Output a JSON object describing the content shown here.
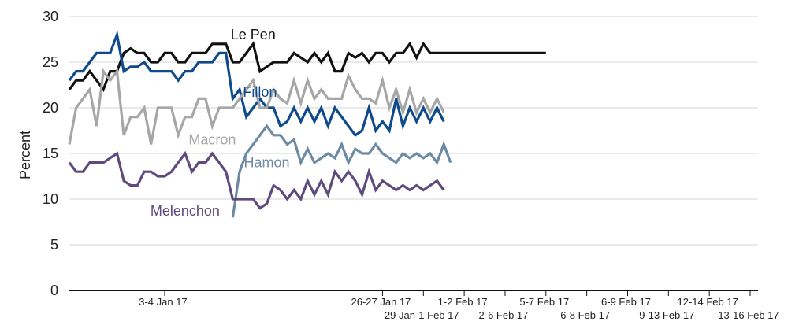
{
  "chart_data": {
    "type": "line",
    "title": "",
    "xlabel": "",
    "ylabel": "Percent",
    "ylim": [
      0,
      30
    ],
    "yticks": [
      0,
      5,
      10,
      15,
      20,
      25,
      30
    ],
    "grid": "horizontal",
    "x_tick_labels": [
      {
        "i": 14,
        "label": "3-4 Jan 17",
        "row": 1
      },
      {
        "i": 46,
        "label": "26-27 Jan 17",
        "row": 1
      },
      {
        "i": 52,
        "label": "29 Jan-1 Feb 17",
        "row": 2
      },
      {
        "i": 58,
        "label": "1-2 Feb 17",
        "row": 1
      },
      {
        "i": 64,
        "label": "2-6 Feb 17",
        "row": 2
      },
      {
        "i": 70,
        "label": "5-7 Feb 17",
        "row": 1
      },
      {
        "i": 76,
        "label": "6-8 Feb 17",
        "row": 2
      },
      {
        "i": 82,
        "label": "6-9 Feb 17",
        "row": 1
      },
      {
        "i": 88,
        "label": "9-13 Feb 17",
        "row": 2
      },
      {
        "i": 94,
        "label": "12-14 Feb 17",
        "row": 1
      },
      {
        "i": 100,
        "label": "13-16 Feb 17",
        "row": 2
      }
    ],
    "series": [
      {
        "name": "Le Pen",
        "color": "#111111",
        "label_pos": {
          "i": 27,
          "v": 27.5
        },
        "points": [
          [
            0,
            22
          ],
          [
            1,
            23
          ],
          [
            2,
            23
          ],
          [
            3,
            24
          ],
          [
            4,
            23
          ],
          [
            5,
            22
          ],
          [
            6,
            24
          ],
          [
            7,
            24
          ],
          [
            8,
            26
          ],
          [
            9,
            26.5
          ],
          [
            10,
            26
          ],
          [
            11,
            26
          ],
          [
            12,
            25
          ],
          [
            13,
            25
          ],
          [
            14,
            26
          ],
          [
            15,
            26
          ],
          [
            16,
            25
          ],
          [
            17,
            25
          ],
          [
            18,
            26
          ],
          [
            19,
            26
          ],
          [
            20,
            26
          ],
          [
            21,
            27
          ],
          [
            22,
            27
          ],
          [
            23,
            27
          ],
          [
            24,
            25
          ],
          [
            25,
            25
          ],
          [
            26,
            26
          ],
          [
            27,
            27
          ],
          [
            28,
            24
          ],
          [
            29,
            24.5
          ],
          [
            30,
            25
          ],
          [
            31,
            25
          ],
          [
            32,
            25
          ],
          [
            33,
            26
          ],
          [
            34,
            25.5
          ],
          [
            35,
            25
          ],
          [
            36,
            26
          ],
          [
            37,
            25
          ],
          [
            38,
            26
          ],
          [
            39,
            24
          ],
          [
            40,
            24
          ],
          [
            41,
            26
          ],
          [
            42,
            25.5
          ],
          [
            43,
            26
          ],
          [
            44,
            25
          ],
          [
            45,
            26
          ],
          [
            46,
            26
          ],
          [
            47,
            25
          ],
          [
            48,
            26
          ],
          [
            49,
            26
          ],
          [
            50,
            27
          ],
          [
            51,
            25.5
          ],
          [
            52,
            27
          ],
          [
            53,
            26
          ],
          [
            54,
            26
          ],
          [
            55,
            26
          ],
          [
            56,
            26
          ],
          [
            57,
            26
          ],
          [
            58,
            26
          ],
          [
            59,
            26
          ],
          [
            60,
            26
          ],
          [
            61,
            26
          ],
          [
            62,
            26
          ],
          [
            63,
            26
          ],
          [
            64,
            26
          ],
          [
            65,
            26
          ],
          [
            66,
            26
          ],
          [
            67,
            26
          ],
          [
            68,
            26
          ],
          [
            69,
            26
          ],
          [
            70,
            26
          ]
        ]
      },
      {
        "name": "Fillon",
        "color": "#0e4a8c",
        "label_pos": {
          "i": 28,
          "v": 21.2
        },
        "points": [
          [
            0,
            23
          ],
          [
            1,
            24
          ],
          [
            2,
            24
          ],
          [
            3,
            25
          ],
          [
            4,
            26
          ],
          [
            5,
            26
          ],
          [
            6,
            26
          ],
          [
            7,
            28
          ],
          [
            8,
            24
          ],
          [
            9,
            24.5
          ],
          [
            10,
            24.5
          ],
          [
            11,
            25
          ],
          [
            12,
            24
          ],
          [
            13,
            24
          ],
          [
            14,
            24
          ],
          [
            15,
            24
          ],
          [
            16,
            23
          ],
          [
            17,
            24
          ],
          [
            18,
            24
          ],
          [
            19,
            25
          ],
          [
            20,
            25
          ],
          [
            21,
            25
          ],
          [
            22,
            26
          ],
          [
            23,
            26
          ],
          [
            24,
            21
          ],
          [
            25,
            22
          ],
          [
            26,
            19
          ],
          [
            27,
            20
          ],
          [
            28,
            21
          ],
          [
            29,
            20
          ],
          [
            30,
            20
          ],
          [
            31,
            18
          ],
          [
            32,
            18.5
          ],
          [
            33,
            20
          ],
          [
            34,
            18.5
          ],
          [
            35,
            20
          ],
          [
            36,
            18.5
          ],
          [
            37,
            20
          ],
          [
            38,
            18
          ],
          [
            39,
            20
          ],
          [
            40,
            19
          ],
          [
            41,
            18
          ],
          [
            42,
            17
          ],
          [
            43,
            17.5
          ],
          [
            44,
            20
          ],
          [
            45,
            17.5
          ],
          [
            46,
            18.5
          ],
          [
            47,
            17.5
          ],
          [
            48,
            21
          ],
          [
            49,
            18
          ],
          [
            50,
            20
          ],
          [
            51,
            18.5
          ],
          [
            52,
            20
          ],
          [
            53,
            18.5
          ],
          [
            54,
            20
          ],
          [
            55,
            18.5
          ]
        ]
      },
      {
        "name": "Macron",
        "color": "#a6a6a6",
        "label_pos": {
          "i": 21,
          "v": 16
        },
        "points": [
          [
            0,
            16
          ],
          [
            1,
            20
          ],
          [
            2,
            21
          ],
          [
            3,
            22
          ],
          [
            4,
            18
          ],
          [
            5,
            24
          ],
          [
            6,
            23
          ],
          [
            7,
            24
          ],
          [
            8,
            17
          ],
          [
            9,
            19
          ],
          [
            10,
            19
          ],
          [
            11,
            20
          ],
          [
            12,
            16
          ],
          [
            13,
            20
          ],
          [
            14,
            20
          ],
          [
            15,
            20
          ],
          [
            16,
            17
          ],
          [
            17,
            19
          ],
          [
            18,
            19
          ],
          [
            19,
            21
          ],
          [
            20,
            21
          ],
          [
            21,
            18
          ],
          [
            22,
            20
          ],
          [
            23,
            20
          ],
          [
            24,
            20
          ],
          [
            25,
            21
          ],
          [
            26,
            22
          ],
          [
            27,
            23
          ],
          [
            28,
            20
          ],
          [
            29,
            20
          ],
          [
            30,
            22
          ],
          [
            31,
            21
          ],
          [
            32,
            20.5
          ],
          [
            33,
            23
          ],
          [
            34,
            20.5
          ],
          [
            35,
            23
          ],
          [
            36,
            21
          ],
          [
            37,
            22
          ],
          [
            38,
            21
          ],
          [
            39,
            21
          ],
          [
            40,
            21
          ],
          [
            41,
            23.5
          ],
          [
            42,
            22
          ],
          [
            43,
            21
          ],
          [
            44,
            21
          ],
          [
            45,
            20.5
          ],
          [
            46,
            23
          ],
          [
            47,
            20
          ],
          [
            48,
            22
          ],
          [
            49,
            19.5
          ],
          [
            50,
            22
          ],
          [
            51,
            19.5
          ],
          [
            52,
            21
          ],
          [
            53,
            19.5
          ],
          [
            54,
            21
          ],
          [
            55,
            19.5
          ]
        ]
      },
      {
        "name": "Hamon",
        "color": "#6d8aa3",
        "label_pos": {
          "i": 29,
          "v": 13.5
        },
        "points": [
          [
            24,
            8
          ],
          [
            25,
            13
          ],
          [
            26,
            15
          ],
          [
            27,
            16
          ],
          [
            28,
            17
          ],
          [
            29,
            18
          ],
          [
            30,
            17
          ],
          [
            31,
            17
          ],
          [
            32,
            16
          ],
          [
            33,
            16.5
          ],
          [
            34,
            14
          ],
          [
            35,
            15.5
          ],
          [
            36,
            14
          ],
          [
            37,
            14.5
          ],
          [
            38,
            15
          ],
          [
            39,
            14.5
          ],
          [
            40,
            16
          ],
          [
            41,
            14
          ],
          [
            42,
            15.5
          ],
          [
            43,
            15
          ],
          [
            44,
            15
          ],
          [
            45,
            16
          ],
          [
            46,
            15
          ],
          [
            47,
            14.5
          ],
          [
            48,
            14
          ],
          [
            49,
            15
          ],
          [
            50,
            14.5
          ],
          [
            51,
            15
          ],
          [
            52,
            14.5
          ],
          [
            53,
            15
          ],
          [
            54,
            14
          ],
          [
            55,
            16
          ],
          [
            56,
            14
          ]
        ]
      },
      {
        "name": "Melenchon",
        "color": "#5e4a7e",
        "label_pos": {
          "i": 17,
          "v": 8.2
        },
        "points": [
          [
            0,
            14
          ],
          [
            1,
            13
          ],
          [
            2,
            13
          ],
          [
            3,
            14
          ],
          [
            4,
            14
          ],
          [
            5,
            14
          ],
          [
            6,
            14.5
          ],
          [
            7,
            15
          ],
          [
            8,
            12
          ],
          [
            9,
            11.5
          ],
          [
            10,
            11.5
          ],
          [
            11,
            13
          ],
          [
            12,
            13
          ],
          [
            13,
            12.5
          ],
          [
            14,
            12.5
          ],
          [
            15,
            13
          ],
          [
            16,
            14
          ],
          [
            17,
            15
          ],
          [
            18,
            13
          ],
          [
            19,
            14
          ],
          [
            20,
            14
          ],
          [
            21,
            15
          ],
          [
            22,
            14
          ],
          [
            23,
            13
          ],
          [
            24,
            10
          ],
          [
            25,
            10
          ],
          [
            26,
            10
          ],
          [
            27,
            10
          ],
          [
            28,
            9
          ],
          [
            29,
            9.5
          ],
          [
            30,
            11.5
          ],
          [
            31,
            11
          ],
          [
            32,
            10
          ],
          [
            33,
            11
          ],
          [
            34,
            10
          ],
          [
            35,
            12
          ],
          [
            36,
            10.5
          ],
          [
            37,
            12
          ],
          [
            38,
            10.5
          ],
          [
            39,
            13
          ],
          [
            40,
            12
          ],
          [
            41,
            13
          ],
          [
            42,
            12
          ],
          [
            43,
            10.5
          ],
          [
            44,
            13
          ],
          [
            45,
            11
          ],
          [
            46,
            12
          ],
          [
            47,
            11.5
          ],
          [
            48,
            11
          ],
          [
            49,
            11.5
          ],
          [
            50,
            11
          ],
          [
            51,
            11.5
          ],
          [
            52,
            11
          ],
          [
            53,
            11.5
          ],
          [
            54,
            12
          ],
          [
            55,
            11
          ]
        ]
      }
    ]
  }
}
